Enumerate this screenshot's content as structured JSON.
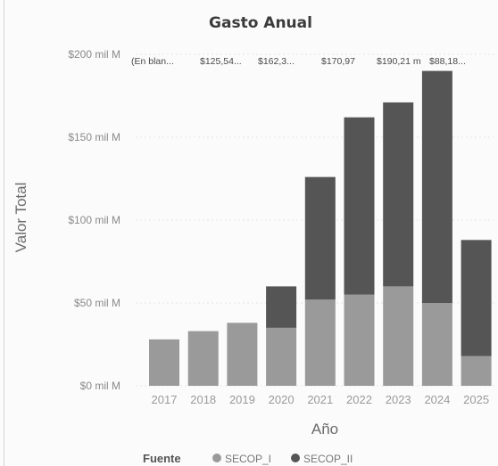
{
  "chart_data": {
    "type": "bar",
    "stacked": true,
    "title": "Gasto Anual",
    "xlabel": "Año",
    "ylabel": "Valor Total",
    "ylim": [
      0,
      200
    ],
    "yticks": [
      {
        "value": 0,
        "label": "$0 mil M"
      },
      {
        "value": 50,
        "label": "$50 mil M"
      },
      {
        "value": 100,
        "label": "$100 mil M"
      },
      {
        "value": 150,
        "label": "$150 mil M"
      },
      {
        "value": 200,
        "label": "$200 mil M"
      }
    ],
    "categories": [
      "2017",
      "2018",
      "2019",
      "2020",
      "2021",
      "2022",
      "2023",
      "2024",
      "2025"
    ],
    "series": [
      {
        "name": "SECOP_I",
        "color": "#9a9a9a",
        "values": [
          28,
          33,
          38,
          35,
          52,
          55,
          60,
          50,
          18
        ]
      },
      {
        "name": "SECOP_II",
        "color": "#555555",
        "values": [
          0,
          0,
          0,
          25,
          74,
          107,
          111,
          140,
          70
        ]
      }
    ],
    "top_labels": [
      "(En blan...",
      "$125,54...",
      "$162,3...",
      "$170,97",
      "$190,21 m",
      "$88,18..."
    ],
    "legend": {
      "title": "Fuente",
      "position": "bottom"
    },
    "grid": true
  }
}
